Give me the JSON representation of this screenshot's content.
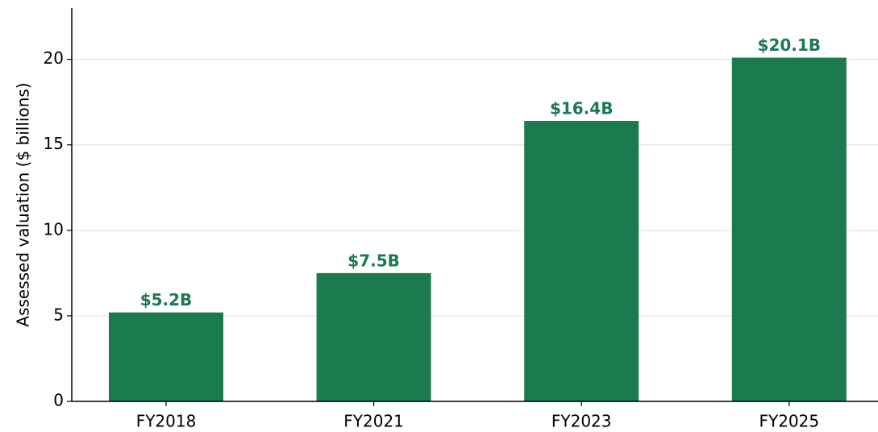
{
  "chart_data": {
    "type": "bar",
    "y_label": "Assessed valuation ($ billions)",
    "categories": [
      "FY2018",
      "FY2021",
      "FY2023",
      "FY2025"
    ],
    "values": [
      5.2,
      7.5,
      16.4,
      20.1
    ],
    "value_labels": [
      "$5.2B",
      "$7.5B",
      "$16.4B",
      "$20.1B"
    ],
    "color": "#1c7a4f",
    "ylim": [
      0,
      23
    ],
    "yticks": [
      0,
      5,
      10,
      15,
      20
    ],
    "grid": true
  }
}
